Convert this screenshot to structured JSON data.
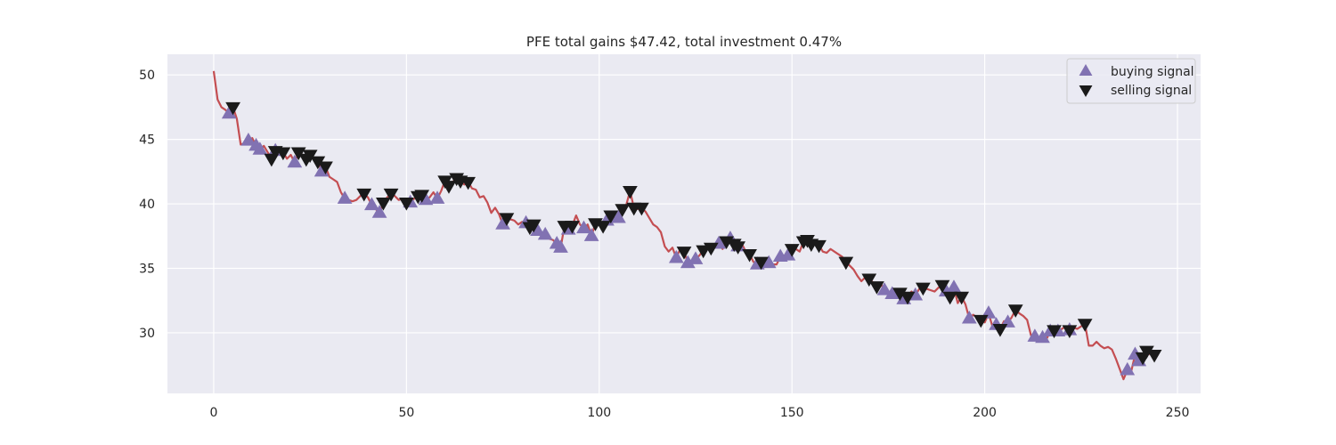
{
  "chart_data": {
    "type": "line",
    "title": "PFE total gains $47.42, total investment 0.47%",
    "xlabel": "",
    "ylabel": "",
    "xlim": [
      -12,
      256
    ],
    "ylim": [
      25.3,
      51.6
    ],
    "x_ticks": [
      0,
      50,
      100,
      150,
      200,
      250
    ],
    "y_ticks": [
      30,
      35,
      40,
      45,
      50
    ],
    "grid": true,
    "legend_position": "top-right",
    "colors": {
      "background": "#eaeaf2",
      "grid": "#ffffff",
      "line": "#c44e52",
      "buy": "#8172b2",
      "sell": "#1a1a1a"
    },
    "series": [
      {
        "name": "",
        "points": [
          [
            0,
            50.3
          ],
          [
            1,
            48.1
          ],
          [
            2,
            47.5
          ],
          [
            3,
            47.3
          ],
          [
            4,
            47.0
          ],
          [
            5,
            47.5
          ],
          [
            6,
            46.6
          ],
          [
            7,
            44.6
          ],
          [
            8,
            44.7
          ],
          [
            9,
            44.9
          ],
          [
            10,
            45.1
          ],
          [
            11,
            44.5
          ],
          [
            12,
            44.2
          ],
          [
            13,
            44.5
          ],
          [
            14,
            44.0
          ],
          [
            15,
            43.5
          ],
          [
            16,
            44.1
          ],
          [
            17,
            43.8
          ],
          [
            18,
            44.0
          ],
          [
            19,
            43.5
          ],
          [
            20,
            43.8
          ],
          [
            21,
            43.2
          ],
          [
            22,
            44.0
          ],
          [
            23,
            43.8
          ],
          [
            24,
            43.5
          ],
          [
            25,
            43.8
          ],
          [
            26,
            43.4
          ],
          [
            27,
            43.3
          ],
          [
            28,
            42.5
          ],
          [
            29,
            42.9
          ],
          [
            30,
            42.1
          ],
          [
            31,
            41.9
          ],
          [
            32,
            41.7
          ],
          [
            33,
            40.9
          ],
          [
            34,
            40.4
          ],
          [
            35,
            40.3
          ],
          [
            36,
            40.2
          ],
          [
            37,
            40.3
          ],
          [
            38,
            40.6
          ],
          [
            39,
            40.8
          ],
          [
            40,
            40.5
          ],
          [
            41,
            39.9
          ],
          [
            42,
            39.6
          ],
          [
            43,
            39.3
          ],
          [
            44,
            40.1
          ],
          [
            45,
            40.5
          ],
          [
            46,
            40.8
          ],
          [
            47,
            40.6
          ],
          [
            48,
            40.3
          ],
          [
            49,
            40.4
          ],
          [
            50,
            40.1
          ],
          [
            51,
            40.1
          ],
          [
            52,
            40.4
          ],
          [
            53,
            40.6
          ],
          [
            54,
            40.7
          ],
          [
            55,
            40.3
          ],
          [
            56,
            40.5
          ],
          [
            57,
            40.9
          ],
          [
            58,
            40.4
          ],
          [
            59,
            41.0
          ],
          [
            60,
            41.8
          ],
          [
            61,
            41.4
          ],
          [
            62,
            41.7
          ],
          [
            63,
            42.0
          ],
          [
            64,
            41.8
          ],
          [
            65,
            41.5
          ],
          [
            66,
            41.7
          ],
          [
            67,
            41.2
          ],
          [
            68,
            41.1
          ],
          [
            69,
            40.5
          ],
          [
            70,
            40.6
          ],
          [
            71,
            40.1
          ],
          [
            72,
            39.3
          ],
          [
            73,
            39.7
          ],
          [
            74,
            39.2
          ],
          [
            75,
            38.4
          ],
          [
            76,
            38.9
          ],
          [
            77,
            38.8
          ],
          [
            78,
            38.7
          ],
          [
            79,
            38.4
          ],
          [
            80,
            38.6
          ],
          [
            81,
            38.5
          ],
          [
            82,
            38.2
          ],
          [
            83,
            38.4
          ],
          [
            84,
            37.9
          ],
          [
            85,
            37.8
          ],
          [
            86,
            37.6
          ],
          [
            87,
            37.3
          ],
          [
            88,
            37.2
          ],
          [
            89,
            36.9
          ],
          [
            90,
            36.6
          ],
          [
            91,
            38.3
          ],
          [
            92,
            38.0
          ],
          [
            93,
            38.3
          ],
          [
            94,
            39.1
          ],
          [
            95,
            38.4
          ],
          [
            96,
            38.1
          ],
          [
            97,
            38.4
          ],
          [
            98,
            37.5
          ],
          [
            99,
            38.5
          ],
          [
            100,
            38.5
          ],
          [
            101,
            38.3
          ],
          [
            102,
            38.7
          ],
          [
            103,
            39.1
          ],
          [
            104,
            38.9
          ],
          [
            105,
            38.9
          ],
          [
            106,
            39.6
          ],
          [
            107,
            39.9
          ],
          [
            108,
            41.0
          ],
          [
            109,
            39.7
          ],
          [
            110,
            39.6
          ],
          [
            111,
            39.7
          ],
          [
            112,
            39.4
          ],
          [
            113,
            38.9
          ],
          [
            114,
            38.4
          ],
          [
            115,
            38.2
          ],
          [
            116,
            37.8
          ],
          [
            117,
            36.7
          ],
          [
            118,
            36.3
          ],
          [
            119,
            36.6
          ],
          [
            120,
            35.8
          ],
          [
            121,
            36.5
          ],
          [
            122,
            36.3
          ],
          [
            123,
            35.4
          ],
          [
            124,
            35.5
          ],
          [
            125,
            35.7
          ],
          [
            126,
            36.0
          ],
          [
            127,
            36.4
          ],
          [
            128,
            36.8
          ],
          [
            129,
            36.6
          ],
          [
            130,
            36.8
          ],
          [
            131,
            36.9
          ],
          [
            132,
            36.5
          ],
          [
            133,
            37.1
          ],
          [
            134,
            37.3
          ],
          [
            135,
            36.9
          ],
          [
            136,
            36.7
          ],
          [
            137,
            36.9
          ],
          [
            138,
            36.3
          ],
          [
            139,
            36.1
          ],
          [
            140,
            35.5
          ],
          [
            141,
            35.3
          ],
          [
            142,
            35.5
          ],
          [
            143,
            35.1
          ],
          [
            144,
            35.4
          ],
          [
            145,
            35.3
          ],
          [
            146,
            35.3
          ],
          [
            147,
            35.9
          ],
          [
            148,
            36.0
          ],
          [
            149,
            36.0
          ],
          [
            150,
            36.5
          ],
          [
            151,
            36.5
          ],
          [
            152,
            36.3
          ],
          [
            153,
            37.1
          ],
          [
            154,
            37.2
          ],
          [
            155,
            36.9
          ],
          [
            156,
            37.1
          ],
          [
            157,
            36.8
          ],
          [
            158,
            36.3
          ],
          [
            159,
            36.2
          ],
          [
            160,
            36.5
          ],
          [
            161,
            36.3
          ],
          [
            162,
            36.1
          ],
          [
            163,
            35.9
          ],
          [
            164,
            35.5
          ],
          [
            165,
            35.2
          ],
          [
            166,
            34.9
          ],
          [
            167,
            34.4
          ],
          [
            168,
            34.0
          ],
          [
            169,
            34.3
          ],
          [
            170,
            34.2
          ],
          [
            171,
            33.9
          ],
          [
            172,
            33.6
          ],
          [
            173,
            33.8
          ],
          [
            174,
            33.3
          ],
          [
            175,
            33.1
          ],
          [
            176,
            33.0
          ],
          [
            177,
            32.8
          ],
          [
            178,
            33.1
          ],
          [
            179,
            32.6
          ],
          [
            180,
            32.8
          ],
          [
            181,
            33.2
          ],
          [
            182,
            32.9
          ],
          [
            183,
            33.4
          ],
          [
            184,
            33.5
          ],
          [
            185,
            33.4
          ],
          [
            186,
            33.3
          ],
          [
            187,
            33.2
          ],
          [
            188,
            33.5
          ],
          [
            189,
            33.7
          ],
          [
            190,
            33.2
          ],
          [
            191,
            32.8
          ],
          [
            192,
            33.5
          ],
          [
            193,
            32.3
          ],
          [
            194,
            32.8
          ],
          [
            195,
            32.2
          ],
          [
            196,
            31.1
          ],
          [
            197,
            31.4
          ],
          [
            198,
            31.2
          ],
          [
            199,
            31.0
          ],
          [
            200,
            30.8
          ],
          [
            201,
            31.5
          ],
          [
            202,
            30.5
          ],
          [
            203,
            30.6
          ],
          [
            204,
            30.3
          ],
          [
            205,
            30.9
          ],
          [
            206,
            30.8
          ],
          [
            207,
            31.2
          ],
          [
            208,
            31.8
          ],
          [
            209,
            31.5
          ],
          [
            210,
            31.3
          ],
          [
            211,
            31.0
          ],
          [
            212,
            29.8
          ],
          [
            213,
            29.7
          ],
          [
            214,
            29.4
          ],
          [
            215,
            29.6
          ],
          [
            216,
            29.5
          ],
          [
            217,
            30.1
          ],
          [
            218,
            30.2
          ],
          [
            219,
            30.1
          ],
          [
            220,
            30.3
          ],
          [
            221,
            30.5
          ],
          [
            222,
            30.2
          ],
          [
            223,
            30.4
          ],
          [
            224,
            30.3
          ],
          [
            225,
            30.5
          ],
          [
            226,
            30.7
          ],
          [
            227,
            29.0
          ],
          [
            228,
            29.0
          ],
          [
            229,
            29.3
          ],
          [
            230,
            29.0
          ],
          [
            231,
            28.8
          ],
          [
            232,
            28.9
          ],
          [
            233,
            28.7
          ],
          [
            234,
            28.0
          ],
          [
            235,
            27.2
          ],
          [
            236,
            26.4
          ],
          [
            237,
            27.1
          ],
          [
            238,
            27.0
          ],
          [
            239,
            28.3
          ],
          [
            240,
            27.8
          ],
          [
            241,
            28.1
          ],
          [
            242,
            28.6
          ],
          [
            243,
            28.3
          ]
        ]
      }
    ],
    "legend": [
      {
        "label": "buying signal",
        "marker": "triangle-up"
      },
      {
        "label": "selling signal",
        "marker": "triangle-down"
      }
    ],
    "buy_signals": [
      4,
      9,
      11,
      12,
      16,
      21,
      28,
      34,
      41,
      43,
      51,
      55,
      58,
      75,
      81,
      84,
      86,
      89,
      90,
      92,
      96,
      98,
      102,
      105,
      120,
      123,
      125,
      131,
      134,
      136,
      141,
      144,
      147,
      149,
      174,
      176,
      179,
      182,
      190,
      192,
      196,
      201,
      203,
      206,
      213,
      215,
      217,
      219,
      222,
      237,
      239,
      240
    ],
    "sell_signals": [
      5,
      15,
      16,
      18,
      22,
      24,
      25,
      27,
      29,
      39,
      44,
      46,
      50,
      53,
      54,
      60,
      61,
      63,
      64,
      66,
      76,
      82,
      83,
      91,
      93,
      99,
      101,
      103,
      106,
      108,
      109,
      111,
      122,
      127,
      129,
      133,
      135,
      136,
      139,
      142,
      150,
      153,
      154,
      155,
      157,
      164,
      170,
      172,
      178,
      180,
      184,
      189,
      191,
      194,
      199,
      204,
      208,
      218,
      222,
      226,
      241,
      242,
      244
    ]
  }
}
